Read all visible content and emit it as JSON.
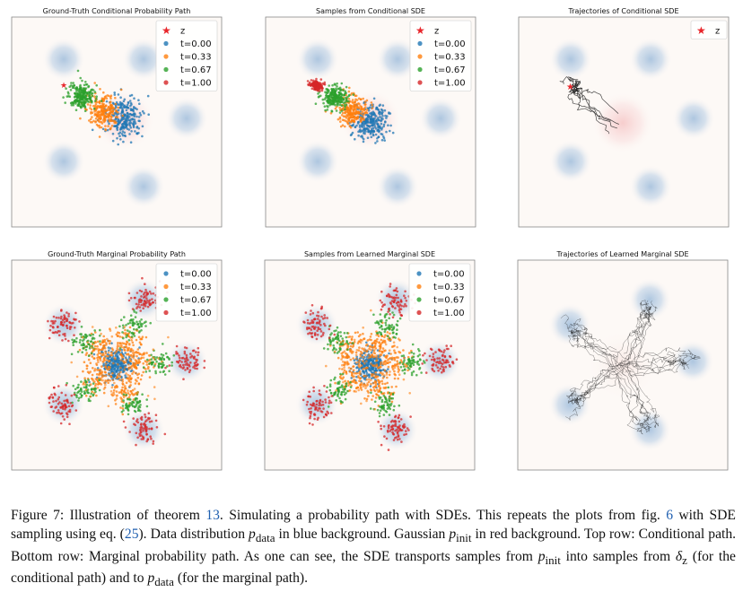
{
  "figure": {
    "panels": [
      {
        "id": "p1",
        "title": "Ground-Truth Conditional Probability Path",
        "kind": "cond-scatter",
        "legend": [
          "z",
          "t=0.00",
          "t=0.33",
          "t=0.67",
          "t=1.00"
        ]
      },
      {
        "id": "p2",
        "title": "Samples from Conditional SDE",
        "kind": "cond-scatter-sde",
        "legend": [
          "z",
          "t=0.00",
          "t=0.33",
          "t=0.67",
          "t=1.00"
        ]
      },
      {
        "id": "p3",
        "title": "Trajectories of Conditional SDE",
        "kind": "cond-traj",
        "legend": [
          "z"
        ]
      },
      {
        "id": "p4",
        "title": "Ground-Truth Marginal Probability Path",
        "kind": "marg-scatter",
        "legend": [
          "t=0.00",
          "t=0.33",
          "t=0.67",
          "t=1.00"
        ]
      },
      {
        "id": "p5",
        "title": "Samples from Learned Marginal SDE",
        "kind": "marg-scatter",
        "legend": [
          "t=0.00",
          "t=0.33",
          "t=0.67",
          "t=1.00"
        ]
      },
      {
        "id": "p6",
        "title": "Trajectories of Learned Marginal SDE",
        "kind": "marg-traj",
        "legend": []
      }
    ],
    "colors": {
      "t0": "#1f77b4",
      "t1": "#ff7f0e",
      "t2": "#2ca02c",
      "t3": "#d62728",
      "z": "#e8262b",
      "traj": "#1a1a1a"
    }
  },
  "caption": {
    "label": "Figure 7:",
    "t1": "Illustration of theorem",
    "ref1": "13",
    "t2": ". Simulating a probability path with SDEs. This repeats the plots from fig.",
    "ref2": "6",
    "t3": "with SDE sampling using eq. (",
    "ref3": "25",
    "t4": "). Data distribution",
    "pdata": "p",
    "pdata_sub": "data",
    "t5": "in blue background. Gaussian",
    "pinit": "p",
    "pinit_sub": "init",
    "t6": "in red background. Top row: Conditional path. Bottom row: Marginal probability path. As one can see, the SDE transports samples from",
    "t7": "into samples from",
    "delta": "δ",
    "delta_sub": "z",
    "t8": "(for the conditional path) and to",
    "t9": "(for the marginal path)."
  }
}
